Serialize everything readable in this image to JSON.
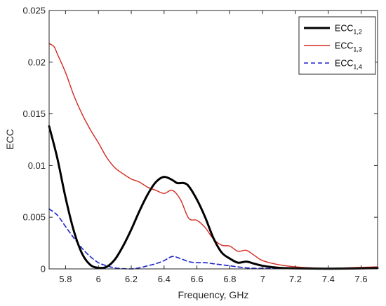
{
  "chart_data": {
    "type": "line",
    "xlabel": "Frequency, GHz",
    "ylabel": "ECC",
    "xlim": [
      5.7,
      7.7
    ],
    "ylim": [
      0,
      0.025
    ],
    "x_ticks": [
      "5.8",
      "6",
      "6.2",
      "6.4",
      "6.6",
      "6.8",
      "7",
      "7.2",
      "7.4",
      "7.6"
    ],
    "x_tick_values": [
      5.8,
      6.0,
      6.2,
      6.4,
      6.6,
      6.8,
      7.0,
      7.2,
      7.4,
      7.6
    ],
    "y_ticks": [
      "0",
      "0.005",
      "0.01",
      "0.015",
      "0.02",
      "0.025"
    ],
    "y_tick_values": [
      0,
      0.005,
      0.01,
      0.015,
      0.02,
      0.025
    ],
    "grid": false,
    "legend_position": "top-right",
    "series": [
      {
        "name": "ECC",
        "name_sub": "1,2",
        "color": "#000000",
        "style": "solid-thick",
        "x": [
          5.7,
          5.75,
          5.8,
          5.85,
          5.9,
          5.95,
          6.0,
          6.05,
          6.1,
          6.15,
          6.2,
          6.25,
          6.3,
          6.35,
          6.4,
          6.45,
          6.48,
          6.52,
          6.55,
          6.6,
          6.65,
          6.7,
          6.75,
          6.8,
          6.85,
          6.9,
          6.95,
          7.0,
          7.1,
          7.2,
          7.4,
          7.6,
          7.7
        ],
        "y": [
          0.0138,
          0.0107,
          0.0069,
          0.0037,
          0.0015,
          0.0004,
          0.0001,
          0.0002,
          0.0009,
          0.0022,
          0.0038,
          0.0056,
          0.0072,
          0.0084,
          0.0089,
          0.0086,
          0.0083,
          0.0083,
          0.008,
          0.0067,
          0.005,
          0.003,
          0.0016,
          0.001,
          0.0006,
          0.0007,
          0.0005,
          0.0003,
          0.0001,
          5e-05,
          2e-05,
          5e-05,
          8e-05
        ]
      },
      {
        "name": "ECC",
        "name_sub": "1,3",
        "color": "#d42a20",
        "color_mid": "#8b3a1a",
        "style": "solid",
        "x": [
          5.7,
          5.73,
          5.75,
          5.8,
          5.85,
          5.9,
          5.95,
          6.0,
          6.05,
          6.1,
          6.15,
          6.2,
          6.25,
          6.3,
          6.35,
          6.4,
          6.45,
          6.5,
          6.55,
          6.6,
          6.65,
          6.7,
          6.75,
          6.8,
          6.85,
          6.9,
          6.95,
          7.0,
          7.1,
          7.2,
          7.3,
          7.4,
          7.5,
          7.6,
          7.7
        ],
        "y": [
          0.0218,
          0.0215,
          0.0208,
          0.019,
          0.0168,
          0.015,
          0.0135,
          0.0122,
          0.0108,
          0.0098,
          0.0092,
          0.0087,
          0.0084,
          0.0079,
          0.0076,
          0.0073,
          0.0076,
          0.0067,
          0.0049,
          0.0047,
          0.004,
          0.0029,
          0.0023,
          0.0022,
          0.0017,
          0.0018,
          0.0013,
          0.0008,
          0.0004,
          0.0002,
          0.0001,
          5e-05,
          0.0001,
          0.00015,
          0.0002
        ]
      },
      {
        "name": "ECC",
        "name_sub": "1,4",
        "color": "#1a22c8",
        "style": "dashed",
        "x": [
          5.7,
          5.75,
          5.8,
          5.85,
          5.9,
          5.95,
          6.0,
          6.05,
          6.1,
          6.15,
          6.2,
          6.25,
          6.3,
          6.35,
          6.4,
          6.45,
          6.5,
          6.55,
          6.6,
          6.65,
          6.7,
          6.75,
          6.8,
          6.9,
          7.0,
          7.2,
          7.4,
          7.6,
          7.7
        ],
        "y": [
          0.0058,
          0.0052,
          0.0041,
          0.003,
          0.002,
          0.0012,
          0.0006,
          0.0003,
          0.0001,
          2e-05,
          0.0,
          0.0001,
          0.0003,
          0.0005,
          0.0008,
          0.0012,
          0.001,
          0.0007,
          0.0006,
          0.0006,
          0.0005,
          0.0004,
          0.0003,
          0.0001,
          5e-05,
          2e-05,
          2e-05,
          4e-05,
          5e-05
        ]
      }
    ]
  }
}
